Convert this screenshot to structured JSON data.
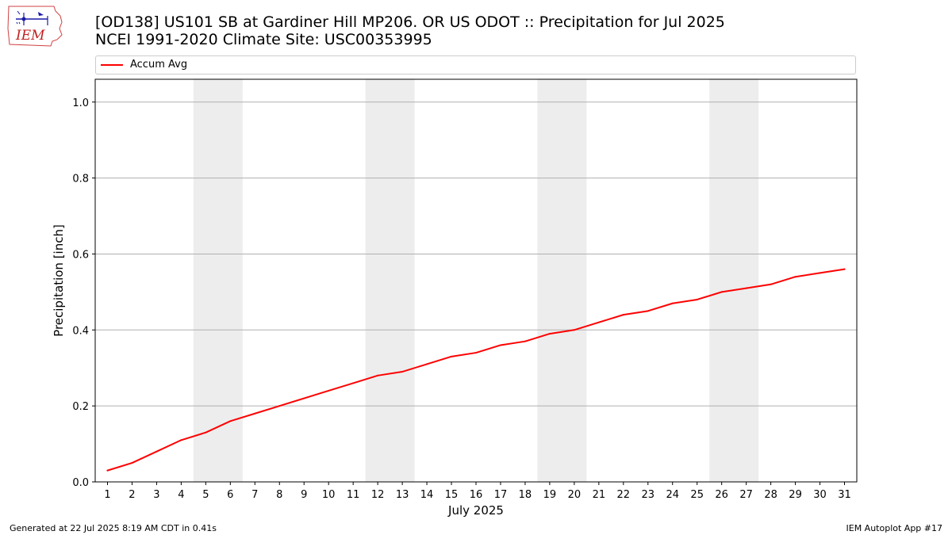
{
  "logo": {
    "text": "IEM"
  },
  "title_line1": "[OD138] US101 SB at Gardiner Hill MP206. OR US ODOT :: Precipitation for Jul 2025",
  "title_line2": "NCEI 1991-2020 Climate Site: USC00353995",
  "footer": {
    "generated": "Generated at 22 Jul 2025 8:19 AM CDT in 0.41s",
    "app": "IEM Autoplot App #17"
  },
  "chart_data": {
    "type": "line",
    "xlabel": "July 2025",
    "ylabel": "Precipitation [inch]",
    "x": [
      1,
      2,
      3,
      4,
      5,
      6,
      7,
      8,
      9,
      10,
      11,
      12,
      13,
      14,
      15,
      16,
      17,
      18,
      19,
      20,
      21,
      22,
      23,
      24,
      25,
      26,
      27,
      28,
      29,
      30,
      31
    ],
    "xlim": [
      0.5,
      31.5
    ],
    "ylim": [
      0,
      1.06
    ],
    "yticks": [
      0.0,
      0.2,
      0.4,
      0.6,
      0.8,
      1.0
    ],
    "ytick_labels": [
      "0.0",
      "0.2",
      "0.4",
      "0.6",
      "0.8",
      "1.0"
    ],
    "xtick_labels": [
      "1",
      "2",
      "3",
      "4",
      "5",
      "6",
      "7",
      "8",
      "9",
      "10",
      "11",
      "12",
      "13",
      "14",
      "15",
      "16",
      "17",
      "18",
      "19",
      "20",
      "21",
      "22",
      "23",
      "24",
      "25",
      "26",
      "27",
      "28",
      "29",
      "30",
      "31"
    ],
    "grid": "horizontal",
    "legend_placement": "top",
    "weekend_shading": [
      [
        4.5,
        6.5
      ],
      [
        11.5,
        13.5
      ],
      [
        18.5,
        20.5
      ],
      [
        25.5,
        27.5
      ]
    ],
    "shade_color": "#ededed",
    "series": [
      {
        "name": "Accum Avg",
        "color": "#ff0000",
        "values": [
          0.03,
          0.05,
          0.08,
          0.11,
          0.13,
          0.16,
          0.18,
          0.2,
          0.22,
          0.24,
          0.26,
          0.28,
          0.29,
          0.31,
          0.33,
          0.34,
          0.36,
          0.37,
          0.39,
          0.4,
          0.42,
          0.44,
          0.45,
          0.47,
          0.48,
          0.5,
          0.51,
          0.52,
          0.54,
          0.55,
          0.56
        ]
      }
    ]
  }
}
